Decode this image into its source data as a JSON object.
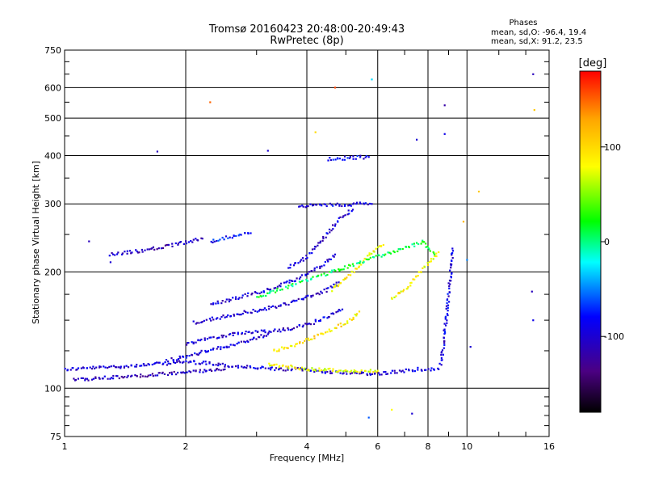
{
  "chart_data": {
    "type": "scatter",
    "title": "Tromsø 20160423 20:48:00-20:49:43",
    "subtitle": "RwPretec (8p)",
    "xlabel": "Frequency [MHz]",
    "ylabel": "Stationary phase Virtual Height [km]",
    "xscale": "log",
    "yscale": "log",
    "xlim": [
      1,
      16
    ],
    "ylim": [
      75,
      750
    ],
    "x_ticks": [
      1,
      2,
      4,
      6,
      8,
      10,
      16
    ],
    "x_tick_labels": [
      "1",
      "2",
      "4",
      "6",
      "8",
      "10",
      "16"
    ],
    "y_ticks": [
      75,
      100,
      200,
      300,
      400,
      500,
      600,
      750
    ],
    "y_tick_labels": [
      "75",
      "100",
      "200",
      "300",
      "400",
      "500",
      "600",
      "750"
    ],
    "grid": true,
    "legend": {
      "title": "Phases",
      "line1": "mean, sd,O: -96.4, 19.4",
      "line2": "mean, sd,X:  91.2, 23.5",
      "placement": "top-right"
    },
    "colorbar": {
      "label": "[deg]",
      "range": [
        -180,
        180
      ],
      "ticks": [
        100,
        0,
        -100
      ],
      "tick_labels": [
        "100",
        "0",
        "-100"
      ],
      "colormap": [
        "#000000",
        "#4b0082",
        "#0000ff",
        "#00ffff",
        "#00ff00",
        "#ffff00",
        "#ffa500",
        "#ff0000"
      ]
    },
    "traces": [
      {
        "name": "O-trace low layer",
        "x": [
          1.0,
          1.2,
          1.4,
          1.6,
          1.8,
          2.0,
          2.3,
          2.6,
          3.0,
          3.4,
          3.8,
          4.2,
          4.6,
          5.0,
          5.5,
          6.0,
          6.5,
          7.0,
          7.5,
          8.0,
          8.5
        ],
        "y": [
          112,
          113,
          114,
          115,
          116,
          117,
          116,
          114,
          113,
          112,
          112,
          111,
          110,
          110,
          109,
          109,
          110,
          111,
          112,
          112,
          112
        ],
        "phase": -100
      },
      {
        "name": "O-trace lower branch",
        "x": [
          1.05,
          1.2,
          1.4,
          1.6,
          1.8,
          2.0,
          2.2,
          2.5
        ],
        "y": [
          105,
          106,
          107,
          108,
          109,
          110,
          111,
          112
        ],
        "phase": -110
      },
      {
        "name": "O-trace E-mid",
        "x": [
          1.8,
          2.0,
          2.2,
          2.5,
          2.8,
          3.0,
          3.2
        ],
        "y": [
          118,
          121,
          124,
          128,
          132,
          135,
          138
        ],
        "phase": -95
      },
      {
        "name": "O-trace F1a",
        "x": [
          2.0,
          2.2,
          2.5,
          2.8,
          3.1,
          3.4,
          3.7,
          4.0,
          4.3,
          4.6,
          4.9
        ],
        "y": [
          130,
          134,
          137,
          139,
          140,
          141,
          143,
          146,
          150,
          155,
          160
        ],
        "phase": -100
      },
      {
        "name": "O-trace F1b",
        "x": [
          2.1,
          2.4,
          2.7,
          3.0,
          3.3,
          3.6,
          3.9,
          4.2,
          4.5,
          4.8
        ],
        "y": [
          148,
          152,
          156,
          159,
          162,
          166,
          170,
          175,
          180,
          188
        ],
        "phase": -100
      },
      {
        "name": "O-trace F1c",
        "x": [
          2.3,
          2.6,
          2.9,
          3.2,
          3.5,
          3.8,
          4.1,
          4.4,
          4.7
        ],
        "y": [
          165,
          170,
          175,
          180,
          186,
          192,
          200,
          210,
          222
        ],
        "phase": -98
      },
      {
        "name": "O-trace F2",
        "x": [
          3.6,
          3.9,
          4.1,
          4.3,
          4.5,
          4.7,
          4.9,
          5.2
        ],
        "y": [
          205,
          215,
          225,
          238,
          252,
          265,
          278,
          290
        ],
        "phase": -100
      },
      {
        "name": "O-trace F2 top",
        "x": [
          3.8,
          4.2,
          4.6,
          5.0,
          5.4,
          5.8
        ],
        "y": [
          296,
          297,
          298,
          299,
          300,
          300
        ],
        "phase": -95
      },
      {
        "name": "O-trace upper",
        "x": [
          4.5,
          4.8,
          5.1,
          5.4,
          5.7
        ],
        "y": [
          392,
          393,
          395,
          396,
          397
        ],
        "phase": -90
      },
      {
        "name": "O-trace spread F",
        "x": [
          1.3,
          1.45,
          1.6,
          1.75,
          1.9,
          2.05,
          2.2
        ],
        "y": [
          222,
          225,
          228,
          232,
          236,
          240,
          244
        ],
        "phase": -110
      },
      {
        "name": "O-trace spread F2",
        "x": [
          2.3,
          2.5,
          2.7,
          2.9
        ],
        "y": [
          240,
          245,
          250,
          252
        ],
        "phase": -80
      },
      {
        "name": "X-trace E",
        "x": [
          3.2,
          3.5,
          3.8,
          4.1,
          4.4,
          4.8,
          5.2,
          5.6,
          6.0
        ],
        "y": [
          115,
          114,
          113,
          112,
          112,
          111,
          111,
          111,
          111
        ],
        "phase": 80
      },
      {
        "name": "X-trace F1",
        "x": [
          3.3,
          3.6,
          3.9,
          4.2,
          4.5,
          4.8,
          5.1,
          5.4
        ],
        "y": [
          125,
          128,
          132,
          136,
          140,
          145,
          150,
          158
        ],
        "phase": 95
      },
      {
        "name": "X-trace F2",
        "x": [
          4.6,
          4.9,
          5.2,
          5.5,
          5.8,
          6.2
        ],
        "y": [
          180,
          190,
          200,
          212,
          225,
          235
        ],
        "phase": 90
      },
      {
        "name": "X-trace high",
        "x": [
          6.5,
          7.0,
          7.5,
          8.0,
          8.5
        ],
        "y": [
          170,
          180,
          195,
          210,
          225
        ],
        "phase": 85
      },
      {
        "name": "X-trace green",
        "x": [
          3.0,
          3.15,
          3.3,
          7.8,
          8.0,
          8.3
        ],
        "y": [
          172,
          175,
          178,
          240,
          232,
          222
        ],
        "phase": 10
      },
      {
        "name": "O-trace vertical",
        "x": [
          8.6,
          8.7,
          8.8,
          8.9,
          9.0,
          9.1,
          9.2
        ],
        "y": [
          115,
          125,
          140,
          155,
          175,
          200,
          230
        ],
        "phase": -95
      }
    ],
    "scatter_points": [
      {
        "x": 1.7,
        "y": 410,
        "phase": -110
      },
      {
        "x": 2.3,
        "y": 550,
        "phase": 150
      },
      {
        "x": 3.2,
        "y": 412,
        "phase": -100
      },
      {
        "x": 4.7,
        "y": 600,
        "phase": 160
      },
      {
        "x": 5.8,
        "y": 630,
        "phase": -30
      },
      {
        "x": 8.8,
        "y": 540,
        "phase": -120
      },
      {
        "x": 14.6,
        "y": 650,
        "phase": -110
      },
      {
        "x": 14.7,
        "y": 525,
        "phase": 110
      },
      {
        "x": 10.7,
        "y": 323,
        "phase": 110
      },
      {
        "x": 10.2,
        "y": 128,
        "phase": -100
      },
      {
        "x": 14.5,
        "y": 178,
        "phase": -110
      },
      {
        "x": 14.6,
        "y": 150,
        "phase": -90
      },
      {
        "x": 6.5,
        "y": 88,
        "phase": 80
      },
      {
        "x": 5.7,
        "y": 84,
        "phase": -60
      },
      {
        "x": 7.3,
        "y": 86,
        "phase": -100
      },
      {
        "x": 1.3,
        "y": 212,
        "phase": -100
      },
      {
        "x": 1.15,
        "y": 240,
        "phase": -110
      },
      {
        "x": 9.8,
        "y": 270,
        "phase": 120
      },
      {
        "x": 10.0,
        "y": 215,
        "phase": -50
      },
      {
        "x": 8.8,
        "y": 455,
        "phase": -90
      },
      {
        "x": 7.5,
        "y": 440,
        "phase": -100
      },
      {
        "x": 4.2,
        "y": 460,
        "phase": 100
      }
    ]
  }
}
